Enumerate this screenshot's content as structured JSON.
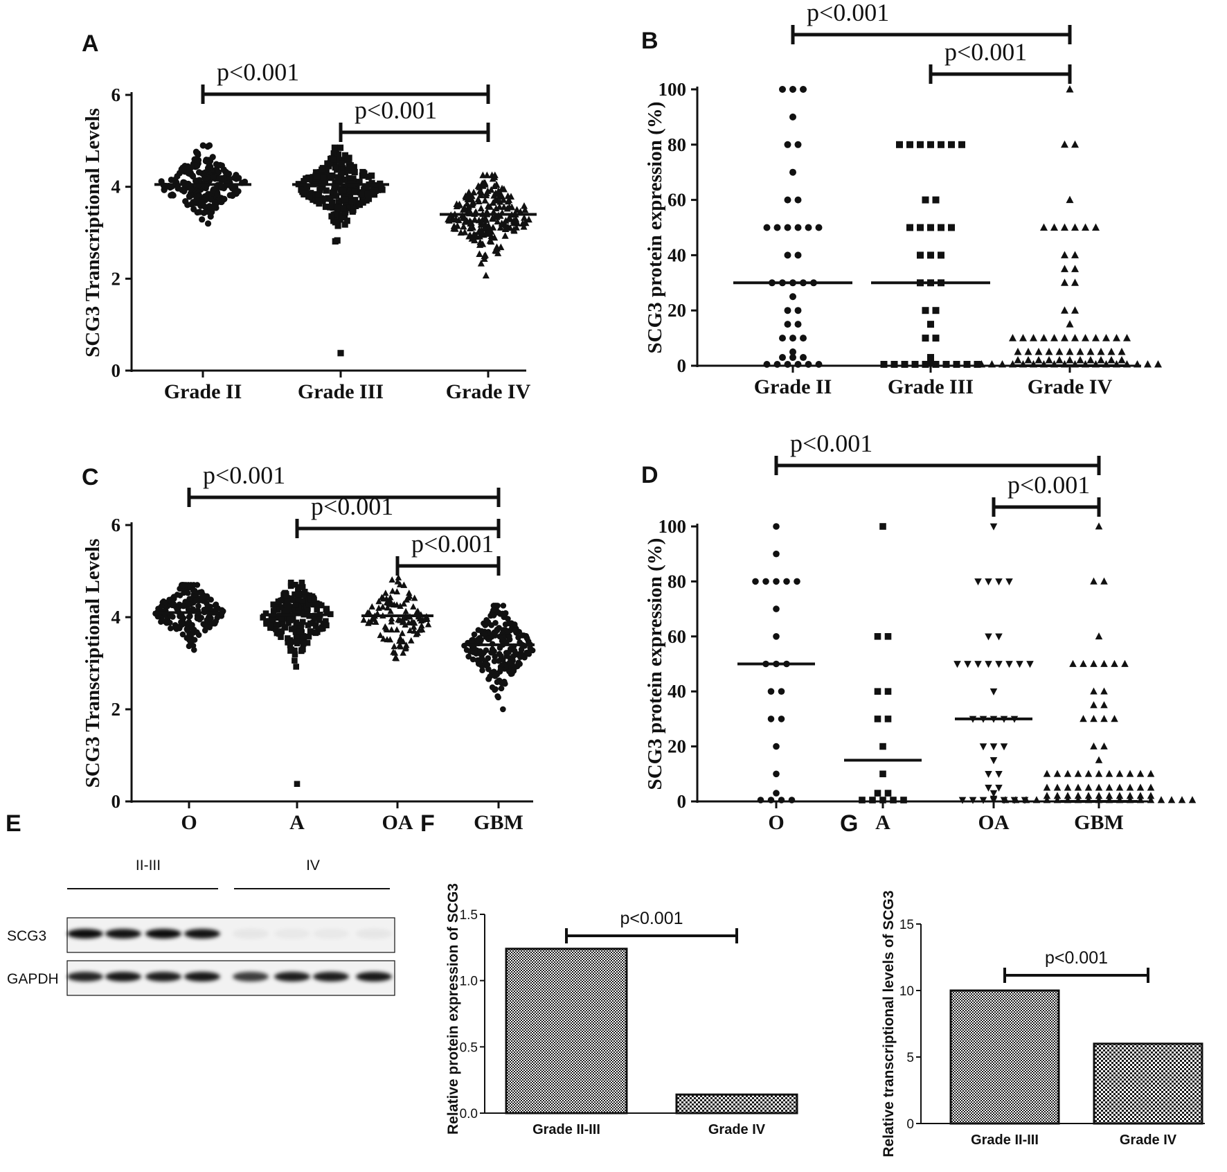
{
  "colors": {
    "marks": "#111111",
    "axis": "#111111",
    "band": "#1a1a1a",
    "blot_bg": "#f2f2f2"
  },
  "chart_data": [
    {
      "panel": "A",
      "type": "scatter",
      "ylabel": "SCG3 Transcriptional Levels",
      "ylim": [
        0,
        6
      ],
      "yticks": [
        0,
        2,
        4,
        6
      ],
      "categories": [
        "Grade II",
        "Grade III",
        "Grade IV"
      ],
      "markers": [
        "circle",
        "square",
        "triangle"
      ],
      "medians": [
        4.05,
        4.05,
        3.4
      ],
      "spread": [
        {
          "center": 4.05,
          "sd": 0.35,
          "min": 2.45,
          "max": 4.9,
          "count": 230
        },
        {
          "center": 4.0,
          "sd": 0.35,
          "min": 2.5,
          "max": 4.85,
          "count": 230
        },
        {
          "center": 3.35,
          "sd": 0.45,
          "min": 1.25,
          "max": 4.25,
          "count": 210
        }
      ],
      "extra_points": [
        {
          "category": 1,
          "y": 0.38
        }
      ],
      "comparisons": [
        {
          "from": 0,
          "to": 2,
          "label": "p<0.001"
        },
        {
          "from": 1,
          "to": 2,
          "label": "p<0.001"
        }
      ]
    },
    {
      "panel": "B",
      "type": "scatter",
      "ylabel": "SCG3 protein expression (%)",
      "ylim": [
        0,
        100
      ],
      "yticks": [
        0,
        20,
        40,
        60,
        80,
        100
      ],
      "categories": [
        "Grade II",
        "Grade III",
        "Grade IV"
      ],
      "markers": [
        "circle",
        "square",
        "triangle"
      ],
      "medians": [
        30,
        30,
        0
      ],
      "points": [
        [
          100,
          100,
          100,
          90,
          80,
          80,
          70,
          60,
          60,
          50,
          50,
          50,
          50,
          50,
          50,
          40,
          40,
          30,
          30,
          30,
          30,
          30,
          25,
          20,
          20,
          15,
          15,
          10,
          10,
          10,
          5,
          3,
          3,
          3,
          0,
          0,
          0,
          0,
          0,
          0
        ],
        [
          80,
          80,
          80,
          80,
          80,
          80,
          80,
          60,
          60,
          50,
          50,
          50,
          50,
          50,
          40,
          40,
          40,
          30,
          30,
          30,
          20,
          20,
          15,
          10,
          10,
          3,
          1,
          0,
          0,
          0,
          0,
          0,
          0,
          0,
          0,
          0,
          0
        ],
        [
          100,
          80,
          80,
          60,
          50,
          50,
          50,
          50,
          50,
          50,
          40,
          40,
          35,
          35,
          30,
          30,
          20,
          20,
          15,
          10,
          10,
          10,
          10,
          10,
          10,
          10,
          10,
          10,
          10,
          10,
          10,
          5,
          5,
          5,
          5,
          5,
          5,
          5,
          5,
          5,
          5,
          5,
          2,
          2,
          2,
          2,
          2,
          2,
          2,
          2,
          2,
          2,
          2,
          0,
          0,
          0,
          0,
          0,
          0,
          0,
          0,
          0,
          0,
          0,
          0,
          0,
          0,
          0,
          0,
          0,
          0
        ]
      ],
      "comparisons": [
        {
          "from": 0,
          "to": 2,
          "label": "p<0.001"
        },
        {
          "from": 1,
          "to": 2,
          "label": "p<0.001"
        }
      ]
    },
    {
      "panel": "C",
      "type": "scatter",
      "ylabel": "SCG3 Transcriptional Levels",
      "ylim": [
        0,
        6
      ],
      "yticks": [
        0,
        2,
        4,
        6
      ],
      "categories": [
        "O",
        "A",
        "OA",
        "GBM"
      ],
      "markers": [
        "circle",
        "square",
        "triangle",
        "circle"
      ],
      "medians": [
        4.1,
        4.05,
        4.03,
        3.4
      ],
      "spread": [
        {
          "center": 4.1,
          "sd": 0.35,
          "min": 2.7,
          "max": 4.7,
          "count": 190
        },
        {
          "center": 4.0,
          "sd": 0.38,
          "min": 2.5,
          "max": 4.75,
          "count": 200
        },
        {
          "center": 4.0,
          "sd": 0.4,
          "min": 2.45,
          "max": 5.05,
          "count": 110
        },
        {
          "center": 3.35,
          "sd": 0.45,
          "min": 1.25,
          "max": 4.25,
          "count": 220
        }
      ],
      "extra_points": [
        {
          "category": 1,
          "y": 0.38
        }
      ],
      "comparisons": [
        {
          "from": 0,
          "to": 3,
          "label": "p<0.001"
        },
        {
          "from": 1,
          "to": 3,
          "label": "p<0.001"
        },
        {
          "from": 2,
          "to": 3,
          "label": "p<0.001"
        }
      ]
    },
    {
      "panel": "D",
      "type": "scatter",
      "ylabel": "SCG3 protein expression (%)",
      "ylim": [
        0,
        100
      ],
      "yticks": [
        0,
        20,
        40,
        60,
        80,
        100
      ],
      "categories": [
        "O",
        "A",
        "OA",
        "GBM"
      ],
      "markers": [
        "circle",
        "square",
        "triangle-down",
        "triangle"
      ],
      "medians": [
        50,
        15,
        30,
        0
      ],
      "points": [
        [
          100,
          90,
          80,
          80,
          80,
          80,
          80,
          70,
          60,
          50,
          50,
          50,
          40,
          40,
          30,
          30,
          20,
          10,
          3,
          0,
          0,
          0,
          0
        ],
        [
          100,
          60,
          60,
          40,
          40,
          30,
          30,
          20,
          10,
          3,
          3,
          0,
          0,
          0,
          0,
          0
        ],
        [
          100,
          80,
          80,
          80,
          80,
          60,
          60,
          50,
          50,
          50,
          50,
          50,
          50,
          50,
          50,
          40,
          30,
          30,
          30,
          30,
          30,
          20,
          20,
          20,
          15,
          10,
          10,
          5,
          5,
          3,
          1,
          0,
          0,
          0,
          0,
          0,
          0,
          0
        ],
        [
          100,
          80,
          80,
          60,
          50,
          50,
          50,
          50,
          50,
          50,
          40,
          40,
          35,
          35,
          30,
          30,
          30,
          30,
          20,
          20,
          15,
          10,
          10,
          10,
          10,
          10,
          10,
          10,
          10,
          10,
          10,
          10,
          5,
          5,
          5,
          5,
          5,
          5,
          5,
          5,
          5,
          5,
          5,
          2,
          2,
          2,
          2,
          2,
          2,
          2,
          2,
          2,
          2,
          2,
          0,
          0,
          0,
          0,
          0,
          0,
          0,
          0,
          0,
          0,
          0,
          0,
          0,
          0,
          0,
          0,
          0,
          0,
          0
        ]
      ],
      "comparisons": [
        {
          "from": 0,
          "to": 3,
          "label": "p<0.001"
        },
        {
          "from": 2,
          "to": 3,
          "label": "p<0.001"
        }
      ]
    },
    {
      "panel": "F",
      "type": "bar",
      "ylabel": "Relative protein expression of SCG3",
      "ylim": [
        0,
        1.5
      ],
      "yticks": [
        "0.0",
        "0.5",
        "1.0",
        "1.5"
      ],
      "categories": [
        "Grade II-III",
        "Grade IV"
      ],
      "values": [
        1.24,
        0.14
      ],
      "comparisons": [
        {
          "from": 0,
          "to": 1,
          "label": "p<0.001"
        }
      ]
    },
    {
      "panel": "G",
      "type": "bar",
      "ylabel": "Relative transcriptional levels of SCG3",
      "ylim": [
        0,
        15
      ],
      "yticks": [
        "0",
        "5",
        "10",
        "15"
      ],
      "categories": [
        "Grade II-III",
        "Grade IV"
      ],
      "values": [
        10,
        6
      ],
      "comparisons": [
        {
          "from": 0,
          "to": 1,
          "label": "p<0.001"
        }
      ]
    }
  ],
  "blot": {
    "panel": "E",
    "groups": [
      "II-III",
      "IV"
    ],
    "rows": [
      {
        "label": "SCG3",
        "intensities": [
          0.95,
          0.92,
          0.95,
          0.92,
          0.05,
          0.04,
          0.04,
          0.05
        ]
      },
      {
        "label": "GAPDH",
        "intensities": [
          0.85,
          0.9,
          0.88,
          0.9,
          0.75,
          0.88,
          0.88,
          0.9
        ]
      }
    ]
  }
}
